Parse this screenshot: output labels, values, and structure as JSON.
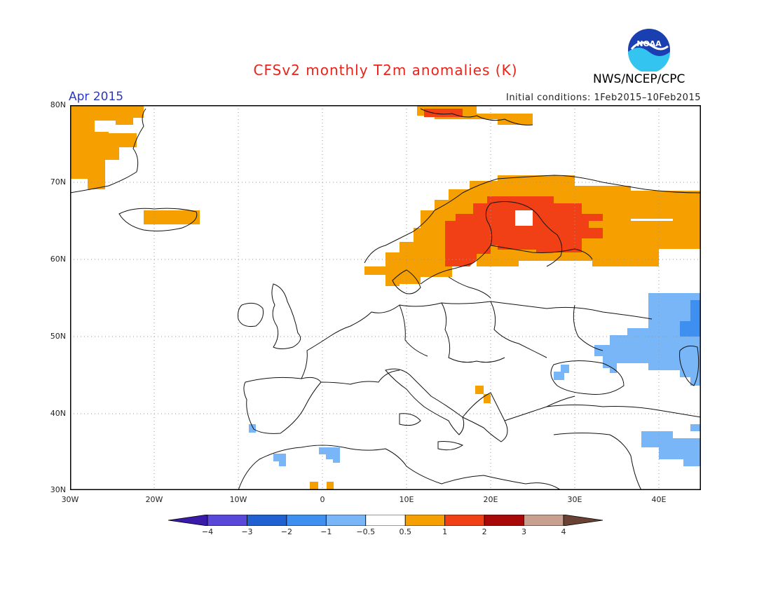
{
  "header": {
    "title": "CFSv2 monthly T2m anomalies (K)",
    "month": "Apr 2015",
    "initial_conditions": "Initial conditions: 1Feb2015–10Feb2015",
    "organization": "NWS/NCEP/CPC",
    "logo_text": "NOAA"
  },
  "map": {
    "lat_labels": [
      "80N",
      "70N",
      "60N",
      "50N",
      "40N",
      "30N"
    ],
    "lon_labels": [
      "30W",
      "20W",
      "10W",
      "0",
      "10E",
      "20E",
      "30E",
      "40E"
    ]
  },
  "legend": {
    "labels": [
      "−4",
      "−3",
      "−2",
      "−1",
      "−0.5",
      "0.5",
      "1",
      "2",
      "3",
      "4"
    ],
    "colors": [
      "#3a1aa8",
      "#5a48d8",
      "#2060d0",
      "#3f8ff0",
      "#78b6f8",
      "#ffffff",
      "#f5a000",
      "#f24016",
      "#a80808",
      "#c8a090",
      "#6a4234"
    ]
  }
}
